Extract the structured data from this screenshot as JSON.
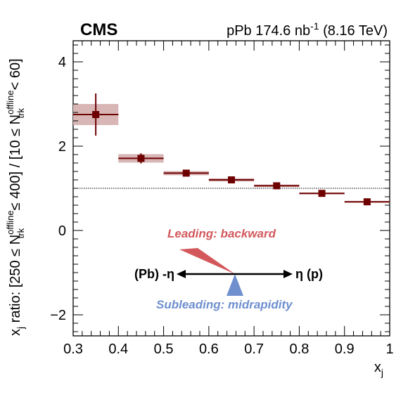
{
  "chart_data": {
    "type": "scatter",
    "title_left": "CMS",
    "title_right": {
      "prefix": "pPb 174.6 nb",
      "sup": "-1",
      "suffix": " (8.16 TeV)"
    },
    "xlabel": {
      "main": "x",
      "sub": "j"
    },
    "ylabel": {
      "p1": "x",
      "p1_sub": "j",
      "p2": " ratio: [250 ≤ N",
      "p2_sup": "offline",
      "p2_sub": "trk",
      "p3": " ≤ 400] / [10 ≤ N",
      "p3_sup": "offline",
      "p3_sub": "trk",
      "p4": " < 60]"
    },
    "xlim": [
      0.3,
      1.0
    ],
    "ylim": [
      -2.5,
      4.5
    ],
    "xticks": [
      0.3,
      0.4,
      0.5,
      0.6,
      0.7,
      0.8,
      0.9,
      1.0
    ],
    "xtick_labels": [
      "0.3",
      "0.4",
      "0.5",
      "0.6",
      "0.7",
      "0.8",
      "0.9",
      "1"
    ],
    "yticks": [
      -2,
      0,
      2,
      4
    ],
    "ytick_labels": [
      "−2",
      "0",
      "2",
      "4"
    ],
    "reference_line": 1.0,
    "points": [
      {
        "x": 0.35,
        "y": 2.75,
        "xlo": 0.3,
        "xhi": 0.4,
        "stat": 0.5,
        "syst": 0.25
      },
      {
        "x": 0.45,
        "y": 1.71,
        "xlo": 0.4,
        "xhi": 0.5,
        "stat": 0.12,
        "syst": 0.1
      },
      {
        "x": 0.55,
        "y": 1.36,
        "xlo": 0.5,
        "xhi": 0.6,
        "stat": 0.04,
        "syst": 0.05
      },
      {
        "x": 0.65,
        "y": 1.2,
        "xlo": 0.6,
        "xhi": 0.7,
        "stat": 0.03,
        "syst": 0.04
      },
      {
        "x": 0.75,
        "y": 1.06,
        "xlo": 0.7,
        "xhi": 0.8,
        "stat": 0.03,
        "syst": 0.03
      },
      {
        "x": 0.85,
        "y": 0.88,
        "xlo": 0.8,
        "xhi": 0.9,
        "stat": 0.03,
        "syst": 0.02
      },
      {
        "x": 0.95,
        "y": 0.68,
        "xlo": 0.9,
        "xhi": 1.0,
        "stat": 0.03,
        "syst": 0.02
      }
    ],
    "colors": {
      "marker": "#6e0000",
      "syst_box": "#d8b6b6",
      "leading_wedge": "#d3585c",
      "subleading_wedge": "#6f8fcf"
    },
    "annotations": {
      "leading": "Leading: backward",
      "subleading": "Subleading: midrapidity",
      "left_dir": "(Pb) -η",
      "right_dir": "η (p)"
    }
  }
}
